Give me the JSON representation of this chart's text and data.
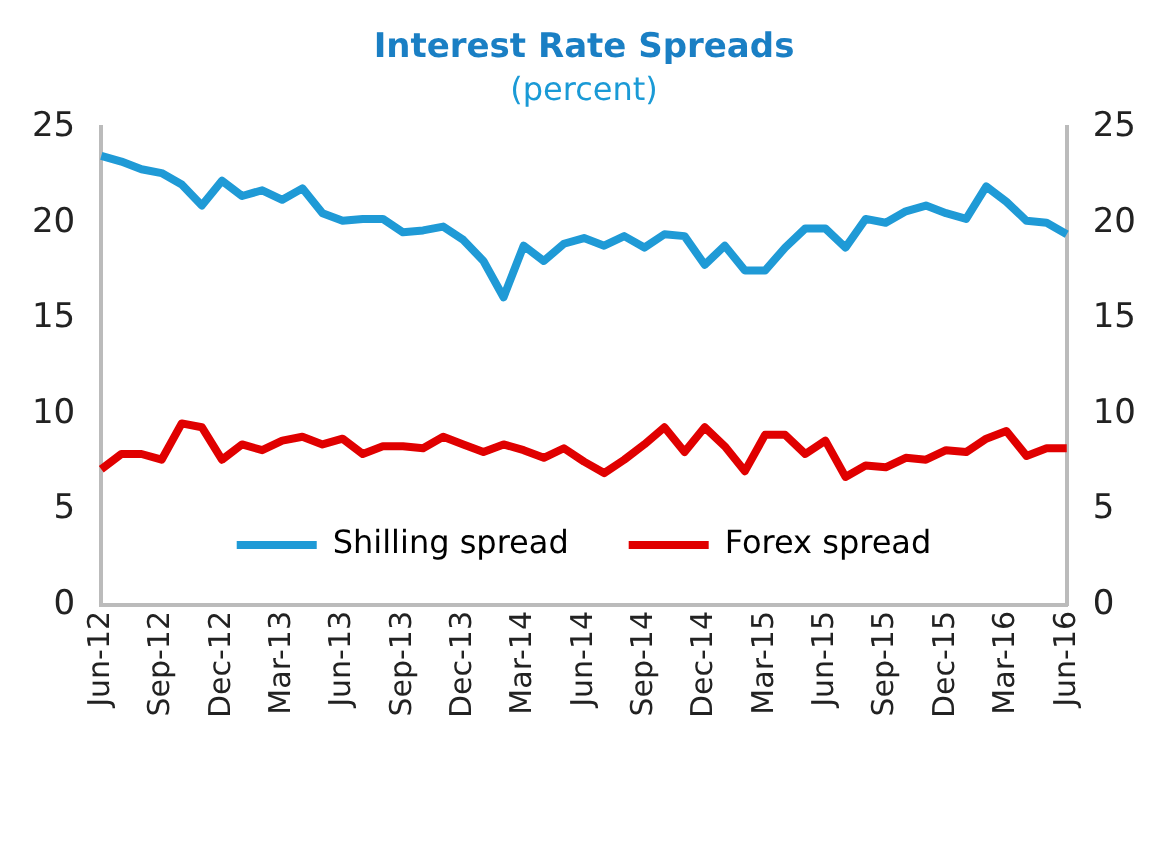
{
  "chart_data": {
    "type": "line",
    "title": "Interest Rate Spreads",
    "subtitle": "(percent)",
    "categories": [
      "Jun-12",
      null,
      null,
      "Sep-12",
      null,
      null,
      "Dec-12",
      null,
      null,
      "Mar-13",
      null,
      null,
      "Jun-13",
      null,
      null,
      "Sep-13",
      null,
      null,
      "Dec-13",
      null,
      null,
      "Mar-14",
      null,
      null,
      "Jun-14",
      null,
      null,
      "Sep-14",
      null,
      null,
      "Dec-14",
      null,
      null,
      "Mar-15",
      null,
      null,
      "Jun-15",
      null,
      null,
      "Sep-15",
      null,
      null,
      "Dec-15",
      null,
      null,
      "Mar-16",
      null,
      null,
      "Jun-16"
    ],
    "series": [
      {
        "name": "Shilling spread",
        "color": "#1f9ad6",
        "values": [
          23.5,
          23.2,
          22.8,
          22.6,
          22.0,
          20.9,
          22.2,
          21.4,
          21.7,
          21.2,
          21.8,
          20.5,
          20.1,
          20.2,
          20.2,
          19.5,
          19.6,
          19.8,
          19.1,
          18.0,
          16.1,
          18.8,
          18.0,
          18.9,
          19.2,
          18.8,
          19.3,
          18.7,
          19.4,
          19.3,
          17.8,
          18.8,
          17.5,
          17.5,
          18.7,
          19.7,
          19.7,
          18.7,
          20.2,
          20.0,
          20.6,
          20.9,
          20.5,
          20.2,
          21.9,
          21.1,
          20.1,
          20.0,
          19.4
        ]
      },
      {
        "name": "Forex spread",
        "color": "#e00000",
        "values": [
          7.1,
          7.9,
          7.9,
          7.6,
          9.5,
          9.3,
          7.6,
          8.4,
          8.1,
          8.6,
          8.8,
          8.4,
          8.7,
          7.9,
          8.3,
          8.3,
          8.2,
          8.8,
          8.4,
          8.0,
          8.4,
          8.1,
          7.7,
          8.2,
          7.5,
          6.9,
          7.6,
          8.4,
          9.3,
          8.0,
          9.3,
          8.3,
          7.0,
          8.9,
          8.9,
          7.9,
          8.6,
          6.7,
          7.3,
          7.2,
          7.7,
          7.6,
          8.1,
          8.0,
          8.7,
          9.1,
          7.8,
          8.2,
          8.2
        ]
      }
    ],
    "ylim": [
      0,
      25
    ],
    "yticks": [
      0,
      5,
      10,
      15,
      20,
      25
    ],
    "y2lim": [
      0,
      25
    ],
    "y2ticks": [
      0,
      5,
      10,
      15,
      20,
      25
    ],
    "grid": false,
    "legend": "bottom",
    "marker": "none",
    "line_style": "solid"
  }
}
